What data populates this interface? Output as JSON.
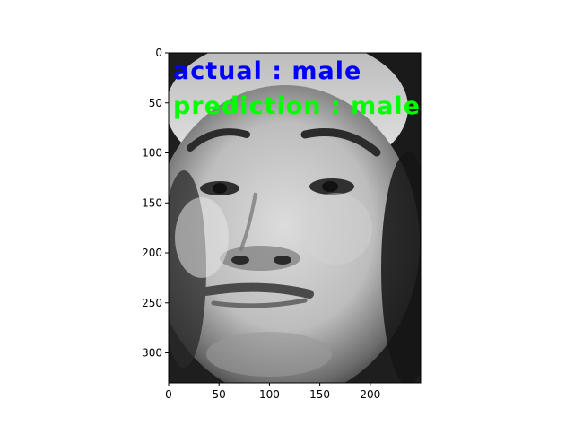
{
  "figure": {
    "image_desc_icon": "grayscale-face-photo",
    "annotations": [
      {
        "text": "actual : male",
        "color": "#0000ff"
      },
      {
        "text": "prediction : male",
        "color": "#00ff00"
      }
    ]
  },
  "axes": {
    "x_ticks": [
      "0",
      "50",
      "100",
      "150",
      "200"
    ],
    "y_ticks": [
      "0",
      "50",
      "100",
      "150",
      "200",
      "250",
      "300"
    ],
    "xlim": [
      0,
      250
    ],
    "ylim": [
      330,
      0
    ]
  }
}
